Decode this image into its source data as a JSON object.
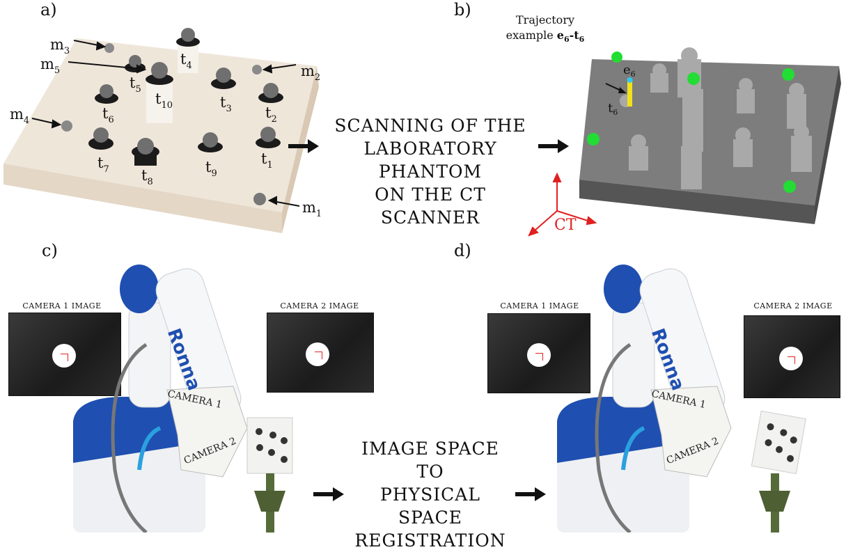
{
  "panels": {
    "a": "a)",
    "b": "b)",
    "c": "c)",
    "d": "d)"
  },
  "captions": {
    "scan_line1": "SCANNING OF THE",
    "scan_line2": "LABORATORY PHANTOM",
    "scan_line3": "ON THE CT SCANNER",
    "reg_line1": "IMAGE SPACE TO",
    "reg_line2": "PHYSICAL SPACE",
    "reg_line3": "REGISTRATION"
  },
  "phantom_labels": {
    "m1": {
      "base": "m",
      "sub": "1"
    },
    "m2": {
      "base": "m",
      "sub": "2"
    },
    "m3": {
      "base": "m",
      "sub": "3"
    },
    "m4": {
      "base": "m",
      "sub": "4"
    },
    "m5": {
      "base": "m",
      "sub": "5"
    },
    "t1": {
      "base": "t",
      "sub": "1"
    },
    "t2": {
      "base": "t",
      "sub": "2"
    },
    "t3": {
      "base": "t",
      "sub": "3"
    },
    "t4": {
      "base": "t",
      "sub": "4"
    },
    "t5": {
      "base": "t",
      "sub": "5"
    },
    "t6": {
      "base": "t",
      "sub": "6"
    },
    "t7": {
      "base": "t",
      "sub": "7"
    },
    "t8": {
      "base": "t",
      "sub": "8"
    },
    "t9": {
      "base": "t",
      "sub": "9"
    },
    "t10": {
      "base": "t",
      "sub": "10"
    }
  },
  "ct_panel": {
    "trajectory_line1": "Trajectory",
    "trajectory_line2": "example",
    "trajectory_e": "e",
    "trajectory_e_sub": "6",
    "trajectory_dash": "-",
    "trajectory_t": "t",
    "trajectory_t_sub": "6",
    "e6_base": "e",
    "e6_sub": "6",
    "t6_base": "t",
    "t6_sub": "6",
    "axis_label": "CT"
  },
  "robot": {
    "brand": "Ronna",
    "camera1_label": "CAMERA 1",
    "camera2_label": "CAMERA 2",
    "camera1_image_title": "CAMERA 1 IMAGE",
    "camera2_image_title": "CAMERA 2 IMAGE"
  },
  "colors": {
    "marker_green": "#22dd33",
    "robot_blue": "#1f4fb0",
    "ct_axis_red": "#e02020",
    "trajectory_yellow": "#f2e21a",
    "trajectory_tip_cyan": "#33c8ee"
  }
}
